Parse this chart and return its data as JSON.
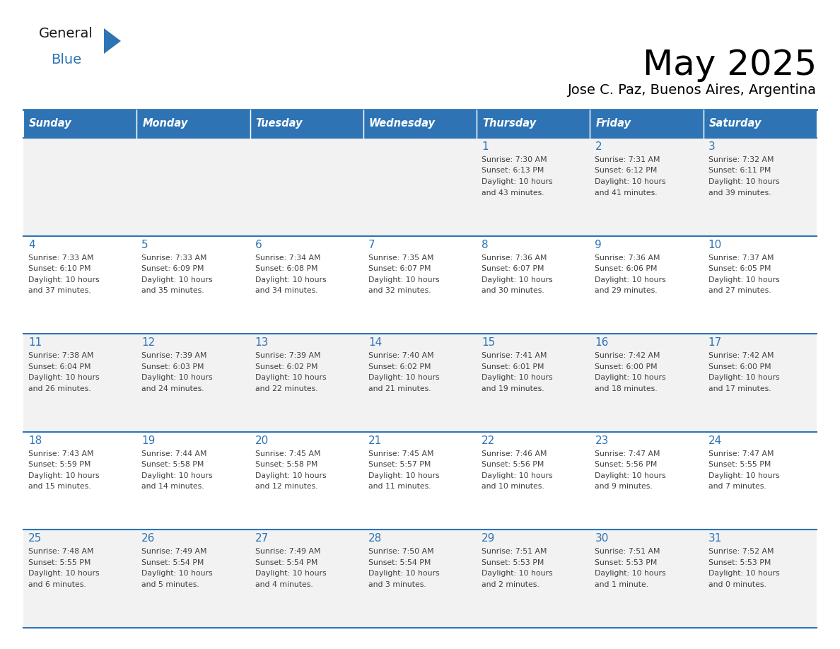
{
  "title": "May 2025",
  "subtitle": "Jose C. Paz, Buenos Aires, Argentina",
  "header_bg": "#2E74B5",
  "header_text_color": "#FFFFFF",
  "day_headers": [
    "Sunday",
    "Monday",
    "Tuesday",
    "Wednesday",
    "Thursday",
    "Friday",
    "Saturday"
  ],
  "cell_bg_odd": "#F2F2F2",
  "cell_bg_even": "#FFFFFF",
  "cell_border_color": "#2E74B5",
  "text_color": "#404040",
  "day_number_color": "#2E74B5",
  "logo_text_color": "#1a1a1a",
  "logo_blue_color": "#2E74B5",
  "calendar": [
    [
      {
        "day": "",
        "sunrise": "",
        "sunset": "",
        "daylight": ""
      },
      {
        "day": "",
        "sunrise": "",
        "sunset": "",
        "daylight": ""
      },
      {
        "day": "",
        "sunrise": "",
        "sunset": "",
        "daylight": ""
      },
      {
        "day": "",
        "sunrise": "",
        "sunset": "",
        "daylight": ""
      },
      {
        "day": "1",
        "sunrise": "7:30 AM",
        "sunset": "6:13 PM",
        "daylight": "10 hours and 43 minutes."
      },
      {
        "day": "2",
        "sunrise": "7:31 AM",
        "sunset": "6:12 PM",
        "daylight": "10 hours and 41 minutes."
      },
      {
        "day": "3",
        "sunrise": "7:32 AM",
        "sunset": "6:11 PM",
        "daylight": "10 hours and 39 minutes."
      }
    ],
    [
      {
        "day": "4",
        "sunrise": "7:33 AM",
        "sunset": "6:10 PM",
        "daylight": "10 hours and 37 minutes."
      },
      {
        "day": "5",
        "sunrise": "7:33 AM",
        "sunset": "6:09 PM",
        "daylight": "10 hours and 35 minutes."
      },
      {
        "day": "6",
        "sunrise": "7:34 AM",
        "sunset": "6:08 PM",
        "daylight": "10 hours and 34 minutes."
      },
      {
        "day": "7",
        "sunrise": "7:35 AM",
        "sunset": "6:07 PM",
        "daylight": "10 hours and 32 minutes."
      },
      {
        "day": "8",
        "sunrise": "7:36 AM",
        "sunset": "6:07 PM",
        "daylight": "10 hours and 30 minutes."
      },
      {
        "day": "9",
        "sunrise": "7:36 AM",
        "sunset": "6:06 PM",
        "daylight": "10 hours and 29 minutes."
      },
      {
        "day": "10",
        "sunrise": "7:37 AM",
        "sunset": "6:05 PM",
        "daylight": "10 hours and 27 minutes."
      }
    ],
    [
      {
        "day": "11",
        "sunrise": "7:38 AM",
        "sunset": "6:04 PM",
        "daylight": "10 hours and 26 minutes."
      },
      {
        "day": "12",
        "sunrise": "7:39 AM",
        "sunset": "6:03 PM",
        "daylight": "10 hours and 24 minutes."
      },
      {
        "day": "13",
        "sunrise": "7:39 AM",
        "sunset": "6:02 PM",
        "daylight": "10 hours and 22 minutes."
      },
      {
        "day": "14",
        "sunrise": "7:40 AM",
        "sunset": "6:02 PM",
        "daylight": "10 hours and 21 minutes."
      },
      {
        "day": "15",
        "sunrise": "7:41 AM",
        "sunset": "6:01 PM",
        "daylight": "10 hours and 19 minutes."
      },
      {
        "day": "16",
        "sunrise": "7:42 AM",
        "sunset": "6:00 PM",
        "daylight": "10 hours and 18 minutes."
      },
      {
        "day": "17",
        "sunrise": "7:42 AM",
        "sunset": "6:00 PM",
        "daylight": "10 hours and 17 minutes."
      }
    ],
    [
      {
        "day": "18",
        "sunrise": "7:43 AM",
        "sunset": "5:59 PM",
        "daylight": "10 hours and 15 minutes."
      },
      {
        "day": "19",
        "sunrise": "7:44 AM",
        "sunset": "5:58 PM",
        "daylight": "10 hours and 14 minutes."
      },
      {
        "day": "20",
        "sunrise": "7:45 AM",
        "sunset": "5:58 PM",
        "daylight": "10 hours and 12 minutes."
      },
      {
        "day": "21",
        "sunrise": "7:45 AM",
        "sunset": "5:57 PM",
        "daylight": "10 hours and 11 minutes."
      },
      {
        "day": "22",
        "sunrise": "7:46 AM",
        "sunset": "5:56 PM",
        "daylight": "10 hours and 10 minutes."
      },
      {
        "day": "23",
        "sunrise": "7:47 AM",
        "sunset": "5:56 PM",
        "daylight": "10 hours and 9 minutes."
      },
      {
        "day": "24",
        "sunrise": "7:47 AM",
        "sunset": "5:55 PM",
        "daylight": "10 hours and 7 minutes."
      }
    ],
    [
      {
        "day": "25",
        "sunrise": "7:48 AM",
        "sunset": "5:55 PM",
        "daylight": "10 hours and 6 minutes."
      },
      {
        "day": "26",
        "sunrise": "7:49 AM",
        "sunset": "5:54 PM",
        "daylight": "10 hours and 5 minutes."
      },
      {
        "day": "27",
        "sunrise": "7:49 AM",
        "sunset": "5:54 PM",
        "daylight": "10 hours and 4 minutes."
      },
      {
        "day": "28",
        "sunrise": "7:50 AM",
        "sunset": "5:54 PM",
        "daylight": "10 hours and 3 minutes."
      },
      {
        "day": "29",
        "sunrise": "7:51 AM",
        "sunset": "5:53 PM",
        "daylight": "10 hours and 2 minutes."
      },
      {
        "day": "30",
        "sunrise": "7:51 AM",
        "sunset": "5:53 PM",
        "daylight": "10 hours and 1 minute."
      },
      {
        "day": "31",
        "sunrise": "7:52 AM",
        "sunset": "5:53 PM",
        "daylight": "10 hours and 0 minutes."
      }
    ]
  ]
}
